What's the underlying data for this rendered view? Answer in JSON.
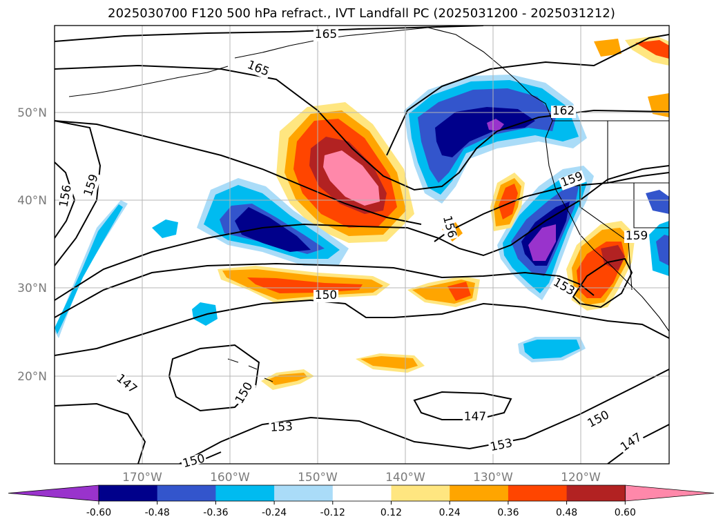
{
  "title": "2025030700 F120 500 hPa refract., IVT Landfall PC (2025031200 - 2025031212)",
  "map": {
    "lat_labels": [
      {
        "text": "50°N",
        "lat": 50
      },
      {
        "text": "40°N",
        "lat": 40
      },
      {
        "text": "30°N",
        "lat": 30
      },
      {
        "text": "20°N",
        "lat": 20
      }
    ],
    "lon_labels": [
      {
        "text": "170°W",
        "lon": -170
      },
      {
        "text": "160°W",
        "lon": -160
      },
      {
        "text": "150°W",
        "lon": -150
      },
      {
        "text": "140°W",
        "lon": -140
      },
      {
        "text": "130°W",
        "lon": -130
      },
      {
        "text": "120°W",
        "lon": -120
      }
    ],
    "contour_labels": [
      {
        "text": "165"
      },
      {
        "text": "165"
      },
      {
        "text": "162"
      },
      {
        "text": "156"
      },
      {
        "text": "159"
      },
      {
        "text": "156"
      },
      {
        "text": "159"
      },
      {
        "text": "159"
      },
      {
        "text": "150"
      },
      {
        "text": "153"
      },
      {
        "text": "147"
      },
      {
        "text": "150"
      },
      {
        "text": "153"
      },
      {
        "text": "147"
      },
      {
        "text": "153"
      },
      {
        "text": "150"
      },
      {
        "text": "147"
      },
      {
        "text": "150"
      }
    ]
  },
  "colorbar": {
    "colors": [
      "#9933cc",
      "#00008b",
      "#3355cc",
      "#00bbf0",
      "#aadcf8",
      "#ffffff",
      "#ffe680",
      "#ffa500",
      "#ff4500",
      "#b22222",
      "#ff88aa"
    ],
    "ticks": [
      "-0.60",
      "-0.48",
      "-0.36",
      "-0.24",
      "-0.12",
      "0.12",
      "0.24",
      "0.36",
      "0.48",
      "0.60"
    ]
  }
}
